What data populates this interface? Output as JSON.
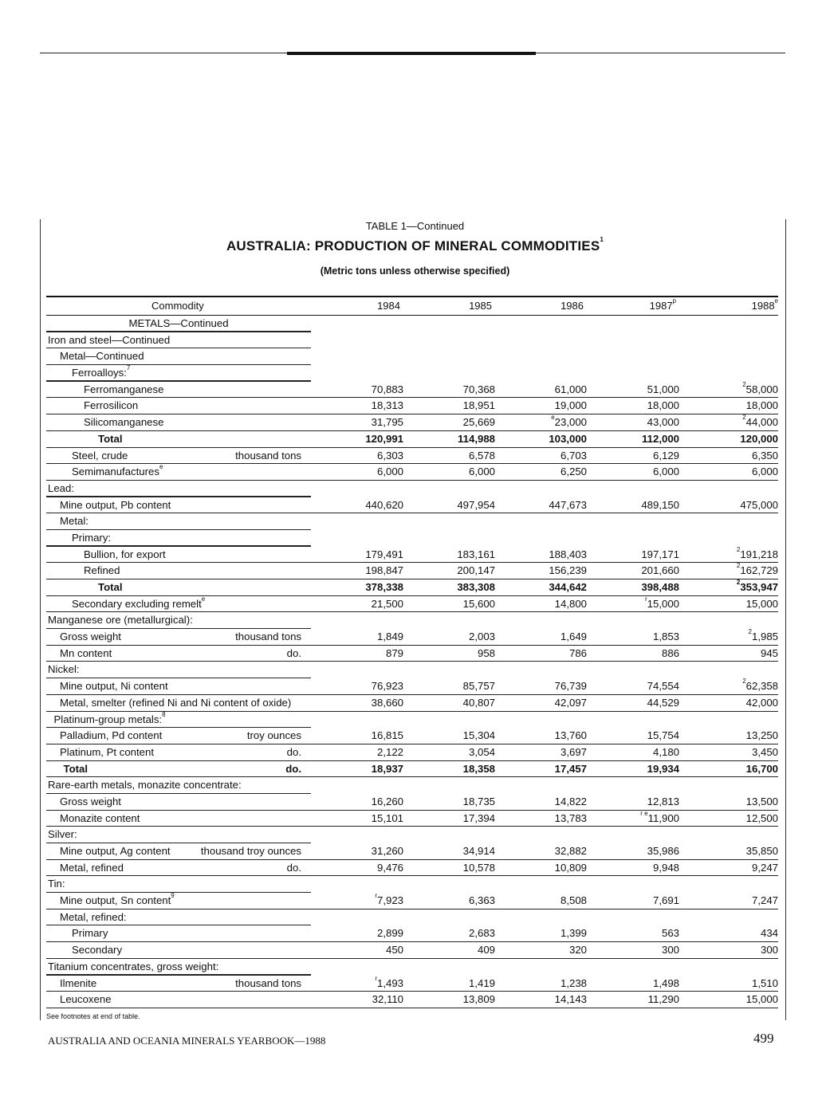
{
  "table_label": "TABLE 1—Continued",
  "title": "AUSTRALIA: PRODUCTION OF MINERAL COMMODITIES",
  "title_note": "1",
  "subtitle": "(Metric tons unless otherwise specified)",
  "columns": {
    "commodity": "Commodity",
    "years": [
      {
        "v": "1984",
        "n": ""
      },
      {
        "v": "1985",
        "n": ""
      },
      {
        "v": "1986",
        "n": ""
      },
      {
        "v": "1987",
        "n": "p"
      },
      {
        "v": "1988",
        "n": "e"
      }
    ]
  },
  "rows": [
    {
      "label": "METALS—Continued",
      "lvl": "c",
      "head": true
    },
    {
      "label": "Iron and steel—Continued",
      "lvl": 0,
      "head": true
    },
    {
      "label": "Metal—Continued",
      "lvl": 1,
      "head": true
    },
    {
      "label": "Ferroalloys:",
      "note": "7",
      "lvl": 2,
      "head": true
    },
    {
      "label": "Ferromanganese",
      "lvl": 3,
      "vals": [
        [
          "",
          "70,883"
        ],
        [
          "",
          "70,368"
        ],
        [
          "",
          "61,000"
        ],
        [
          "",
          "51,000"
        ],
        [
          "2",
          "58,000"
        ]
      ]
    },
    {
      "label": "Ferrosilicon",
      "lvl": 3,
      "vals": [
        [
          "",
          "18,313"
        ],
        [
          "",
          "18,951"
        ],
        [
          "",
          "19,000"
        ],
        [
          "",
          "18,000"
        ],
        [
          "",
          "18,000"
        ]
      ]
    },
    {
      "label": "Silicomanganese",
      "lvl": 3,
      "vals": [
        [
          "",
          "31,795"
        ],
        [
          "",
          "25,669"
        ],
        [
          "e",
          "23,000"
        ],
        [
          "",
          "43,000"
        ],
        [
          "2",
          "44,000"
        ]
      ]
    },
    {
      "label": "Total",
      "lvl": 4,
      "bold": true,
      "vals": [
        [
          "",
          "120,991"
        ],
        [
          "",
          "114,988"
        ],
        [
          "",
          "103,000"
        ],
        [
          "",
          "112,000"
        ],
        [
          "",
          "120,000"
        ]
      ]
    },
    {
      "label": "Steel, crude",
      "unit": "thousand tons",
      "lvl": 2,
      "vals": [
        [
          "",
          "6,303"
        ],
        [
          "",
          "6,578"
        ],
        [
          "",
          "6,703"
        ],
        [
          "",
          "6,129"
        ],
        [
          "",
          "6,350"
        ]
      ]
    },
    {
      "label": "Semimanufactures",
      "note": "e",
      "lvl": 2,
      "vals": [
        [
          "",
          "6,000"
        ],
        [
          "",
          "6,000"
        ],
        [
          "",
          "6,250"
        ],
        [
          "",
          "6,000"
        ],
        [
          "",
          "6,000"
        ]
      ]
    },
    {
      "label": "Lead:",
      "lvl": 0,
      "head": true
    },
    {
      "label": "Mine output, Pb content",
      "lvl": 1,
      "vals": [
        [
          "",
          "440,620"
        ],
        [
          "",
          "497,954"
        ],
        [
          "",
          "447,673"
        ],
        [
          "",
          "489,150"
        ],
        [
          "",
          "475,000"
        ]
      ]
    },
    {
      "label": "Metal:",
      "lvl": 1,
      "head": true
    },
    {
      "label": "Primary:",
      "lvl": 2,
      "head": true
    },
    {
      "label": "Bullion, for export",
      "lvl": 3,
      "vals": [
        [
          "",
          "179,491"
        ],
        [
          "",
          "183,161"
        ],
        [
          "",
          "188,403"
        ],
        [
          "",
          "197,171"
        ],
        [
          "2",
          "191,218"
        ]
      ]
    },
    {
      "label": "Refined",
      "lvl": 3,
      "vals": [
        [
          "",
          "198,847"
        ],
        [
          "",
          "200,147"
        ],
        [
          "",
          "156,239"
        ],
        [
          "",
          "201,660"
        ],
        [
          "2",
          "162,729"
        ]
      ]
    },
    {
      "label": "Total",
      "lvl": 4,
      "bold": true,
      "vals": [
        [
          "",
          "378,338"
        ],
        [
          "",
          "383,308"
        ],
        [
          "",
          "344,642"
        ],
        [
          "",
          "398,488"
        ],
        [
          "2",
          "353,947"
        ]
      ]
    },
    {
      "label": "Secondary excluding remelt",
      "note": "e",
      "lvl": 2,
      "vals": [
        [
          "",
          "21,500"
        ],
        [
          "",
          "15,600"
        ],
        [
          "",
          "14,800"
        ],
        [
          "r",
          "15,000"
        ],
        [
          "",
          "15,000"
        ]
      ]
    },
    {
      "label": "Manganese ore (metallurgical):",
      "lvl": 0,
      "head": true
    },
    {
      "label": "Gross weight",
      "unit": "thousand tons",
      "lvl": 1,
      "vals": [
        [
          "",
          "1,849"
        ],
        [
          "",
          "2,003"
        ],
        [
          "",
          "1,649"
        ],
        [
          "",
          "1,853"
        ],
        [
          "2",
          "1,985"
        ]
      ]
    },
    {
      "label": "Mn content",
      "unit": "do.",
      "lvl": 1,
      "vals": [
        [
          "",
          "879"
        ],
        [
          "",
          "958"
        ],
        [
          "",
          "786"
        ],
        [
          "",
          "886"
        ],
        [
          "",
          "945"
        ]
      ]
    },
    {
      "label": "Nickel:",
      "lvl": 0,
      "head": true
    },
    {
      "label": "Mine output, Ni content",
      "lvl": 1,
      "vals": [
        [
          "",
          "76,923"
        ],
        [
          "",
          "85,757"
        ],
        [
          "",
          "76,739"
        ],
        [
          "",
          "74,554"
        ],
        [
          "2",
          "62,358"
        ]
      ]
    },
    {
      "label": "Metal, smelter (refined Ni and Ni content of oxide)",
      "lvl": 1,
      "vals": [
        [
          "",
          "38,660"
        ],
        [
          "",
          "40,807"
        ],
        [
          "",
          "42,097"
        ],
        [
          "",
          "44,529"
        ],
        [
          "",
          "42,000"
        ]
      ]
    },
    {
      "label": "Platinum-group metals:",
      "note": "8",
      "lvl": 0.5,
      "head": true
    },
    {
      "label": "Palladium, Pd content",
      "unit": "troy ounces",
      "lvl": 1,
      "vals": [
        [
          "",
          "16,815"
        ],
        [
          "",
          "15,304"
        ],
        [
          "",
          "13,760"
        ],
        [
          "",
          "15,754"
        ],
        [
          "",
          "13,250"
        ]
      ]
    },
    {
      "label": "Platinum, Pt content",
      "unit": "do.",
      "lvl": 1,
      "vals": [
        [
          "",
          "2,122"
        ],
        [
          "",
          "3,054"
        ],
        [
          "",
          "3,697"
        ],
        [
          "",
          "4,180"
        ],
        [
          "",
          "3,450"
        ]
      ]
    },
    {
      "label": "Total",
      "unit": "do.",
      "lvl": 1.3,
      "bold": true,
      "vals": [
        [
          "",
          "18,937"
        ],
        [
          "",
          "18,358"
        ],
        [
          "",
          "17,457"
        ],
        [
          "",
          "19,934"
        ],
        [
          "",
          "16,700"
        ]
      ]
    },
    {
      "label": "Rare-earth metals, monazite concentrate:",
      "lvl": 0,
      "head": true
    },
    {
      "label": "Gross weight",
      "lvl": 1,
      "vals": [
        [
          "",
          "16,260"
        ],
        [
          "",
          "18,735"
        ],
        [
          "",
          "14,822"
        ],
        [
          "",
          "12,813"
        ],
        [
          "",
          "13,500"
        ]
      ]
    },
    {
      "label": "Monazite content",
      "lvl": 1,
      "vals": [
        [
          "",
          "15,101"
        ],
        [
          "",
          "17,394"
        ],
        [
          "",
          "13,783"
        ],
        [
          "r e",
          "11,900"
        ],
        [
          "",
          "12,500"
        ]
      ]
    },
    {
      "label": "Silver:",
      "lvl": 0,
      "head": true
    },
    {
      "label": "Mine output, Ag content",
      "unit": "thousand troy ounces",
      "lvl": 1,
      "vals": [
        [
          "",
          "31,260"
        ],
        [
          "",
          "34,914"
        ],
        [
          "",
          "32,882"
        ],
        [
          "",
          "35,986"
        ],
        [
          "",
          "35,850"
        ]
      ]
    },
    {
      "label": "Metal, refined",
      "unit": "do.",
      "lvl": 1,
      "vals": [
        [
          "",
          "9,476"
        ],
        [
          "",
          "10,578"
        ],
        [
          "",
          "10,809"
        ],
        [
          "",
          "9,948"
        ],
        [
          "",
          "9,247"
        ]
      ]
    },
    {
      "label": "Tin:",
      "lvl": 0,
      "head": true
    },
    {
      "label": "Mine output, Sn content",
      "note": "9",
      "lvl": 1,
      "vals": [
        [
          "r",
          "7,923"
        ],
        [
          "",
          "6,363"
        ],
        [
          "",
          "8,508"
        ],
        [
          "",
          "7,691"
        ],
        [
          "",
          "7,247"
        ]
      ]
    },
    {
      "label": "Metal, refined:",
      "lvl": 1,
      "head": true
    },
    {
      "label": "Primary",
      "lvl": 2,
      "vals": [
        [
          "",
          "2,899"
        ],
        [
          "",
          "2,683"
        ],
        [
          "",
          "1,399"
        ],
        [
          "",
          "563"
        ],
        [
          "",
          "434"
        ]
      ]
    },
    {
      "label": "Secondary",
      "lvl": 2,
      "vals": [
        [
          "",
          "450"
        ],
        [
          "",
          "409"
        ],
        [
          "",
          "320"
        ],
        [
          "",
          "300"
        ],
        [
          "",
          "300"
        ]
      ]
    },
    {
      "label": "Titanium concentrates, gross weight:",
      "lvl": 0,
      "head": true
    },
    {
      "label": "Ilmenite",
      "unit": "thousand tons",
      "lvl": 1,
      "vals": [
        [
          "r",
          "1,493"
        ],
        [
          "",
          "1,419"
        ],
        [
          "",
          "1,238"
        ],
        [
          "",
          "1,498"
        ],
        [
          "",
          "1,510"
        ]
      ]
    },
    {
      "label": "Leucoxene",
      "lvl": 1,
      "vals": [
        [
          "",
          "32,110"
        ],
        [
          "",
          "13,809"
        ],
        [
          "",
          "14,143"
        ],
        [
          "",
          "11,290"
        ],
        [
          "",
          "15,000"
        ]
      ]
    }
  ],
  "footnote_ref": "See footnotes at end of table.",
  "footer": "AUSTRALIA AND OCEANIA MINERALS YEARBOOK—1988",
  "page_number": "499"
}
